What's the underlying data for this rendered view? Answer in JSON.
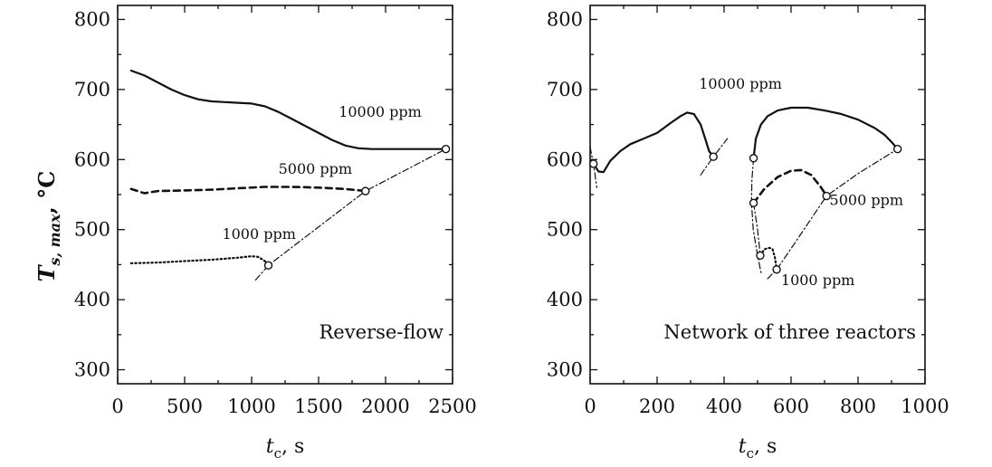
{
  "chart_data": [
    {
      "type": "line",
      "panel_label": "Reverse-flow",
      "xlabel_main": "t",
      "xlabel_sub": "c",
      "xlabel_unit": ", s",
      "ylabel_main": "T",
      "ylabel_sub": "s, max",
      "ylabel_unit": ", °C",
      "xlim": [
        0,
        2500
      ],
      "ylim": [
        280,
        820
      ],
      "xticks": [
        0,
        500,
        1000,
        1500,
        2000,
        2500
      ],
      "yticks": [
        300,
        400,
        500,
        600,
        700,
        800
      ],
      "series": [
        {
          "style": "solid",
          "x": [
            100,
            200,
            300,
            400,
            500,
            600,
            700,
            800,
            900,
            1000,
            1100,
            1200,
            1300,
            1400,
            1500,
            1600,
            1700,
            1800,
            1900,
            2000,
            2100,
            2200,
            2300,
            2450
          ],
          "y": [
            727,
            720,
            710,
            700,
            692,
            686,
            683,
            682,
            681,
            680,
            676,
            668,
            658,
            648,
            638,
            628,
            620,
            616,
            615,
            615,
            615,
            615,
            615,
            615
          ]
        },
        {
          "style": "dashed",
          "x": [
            100,
            200,
            300,
            500,
            700,
            900,
            1100,
            1300,
            1500,
            1700,
            1850
          ],
          "y": [
            558,
            552,
            555,
            556,
            557,
            559,
            561,
            561,
            560,
            558,
            555
          ]
        },
        {
          "style": "dotted",
          "x": [
            100,
            300,
            500,
            700,
            900,
            1000,
            1050,
            1100,
            1125
          ],
          "y": [
            452,
            453,
            455,
            457,
            460,
            462,
            461,
            455,
            449
          ]
        },
        {
          "style": "dashdot",
          "x": [
            1030,
            1125,
            1850,
            2450
          ],
          "y": [
            428,
            449,
            555,
            615
          ]
        }
      ],
      "markers": [
        {
          "x": 1125,
          "y": 449
        },
        {
          "x": 1850,
          "y": 555
        },
        {
          "x": 2450,
          "y": 615
        }
      ],
      "annotations": [
        {
          "text": "10000 ppm",
          "x": 1650,
          "y": 661
        },
        {
          "text": "5000 ppm",
          "x": 1200,
          "y": 580
        },
        {
          "text": "1000 ppm",
          "x": 780,
          "y": 487
        }
      ]
    },
    {
      "type": "line",
      "panel_label": "Network of three reactors",
      "xlabel_main": "t",
      "xlabel_sub": "c",
      "xlabel_unit": ", s",
      "xlim": [
        0,
        1000
      ],
      "ylim": [
        280,
        820
      ],
      "xticks": [
        0,
        200,
        400,
        600,
        800,
        1000
      ],
      "yticks": [
        300,
        400,
        500,
        600,
        700,
        800
      ],
      "series": [
        {
          "style": "solid",
          "x": [
            10,
            25,
            40,
            60,
            90,
            120,
            160,
            200,
            240,
            270,
            290,
            310,
            330,
            345,
            355,
            362,
            368
          ],
          "y": [
            594,
            583,
            582,
            598,
            612,
            622,
            630,
            638,
            652,
            662,
            667,
            665,
            650,
            628,
            612,
            608,
            604
          ]
        },
        {
          "style": "solid",
          "x": [
            488,
            495,
            510,
            530,
            560,
            600,
            650,
            700,
            750,
            800,
            850,
            880,
            900,
            918
          ],
          "y": [
            602,
            630,
            650,
            662,
            670,
            674,
            674,
            670,
            665,
            657,
            645,
            635,
            625,
            615
          ]
        },
        {
          "style": "dashed",
          "x": [
            488,
            520,
            560,
            600,
            630,
            660,
            690,
            706
          ],
          "y": [
            538,
            558,
            575,
            584,
            585,
            578,
            560,
            548
          ]
        },
        {
          "style": "dotted",
          "x": [
            508,
            520,
            535,
            545,
            552,
            557
          ],
          "y": [
            463,
            472,
            474,
            472,
            460,
            443
          ]
        },
        {
          "style": "dashdot",
          "x": [
            488,
            483,
            482,
            487,
            500,
            512
          ],
          "y": [
            602,
            570,
            538,
            500,
            463,
            435
          ]
        },
        {
          "style": "dashdot",
          "x": [
            488,
            500,
            508
          ],
          "y": [
            538,
            500,
            463
          ]
        },
        {
          "style": "dashdot",
          "x": [
            530,
            557,
            610,
            706,
            800,
            918
          ],
          "y": [
            430,
            443,
            480,
            548,
            580,
            615
          ]
        },
        {
          "style": "dashdot",
          "x": [
            0,
            5,
            10,
            20
          ],
          "y": [
            618,
            605,
            594,
            560
          ]
        },
        {
          "style": "dashdot",
          "x": [
            330,
            368,
            410
          ],
          "y": [
            578,
            604,
            630
          ]
        }
      ],
      "markers": [
        {
          "x": 10,
          "y": 594
        },
        {
          "x": 368,
          "y": 604
        },
        {
          "x": 488,
          "y": 602
        },
        {
          "x": 488,
          "y": 538
        },
        {
          "x": 706,
          "y": 548
        },
        {
          "x": 508,
          "y": 463
        },
        {
          "x": 557,
          "y": 443
        },
        {
          "x": 918,
          "y": 615
        }
      ],
      "annotations": [
        {
          "text": "10000 ppm",
          "x": 325,
          "y": 701
        },
        {
          "text": "5000 ppm",
          "x": 715,
          "y": 535
        },
        {
          "text": "1000 ppm",
          "x": 570,
          "y": 421
        }
      ]
    }
  ]
}
